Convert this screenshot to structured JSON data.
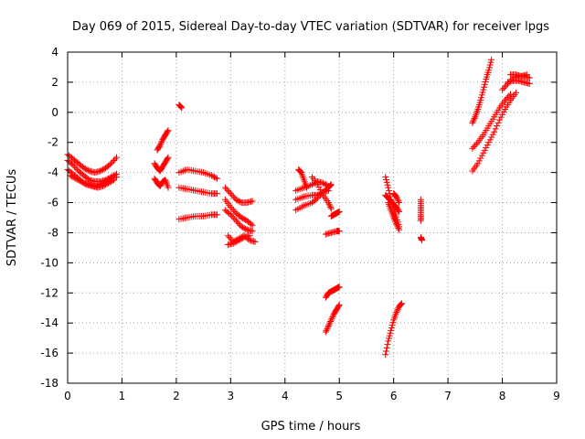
{
  "chart_data": {
    "type": "scatter",
    "title": "Day 069 of 2015, Sidereal Day-to-day VTEC variation (SDTVAR) for receiver lpgs",
    "xlabel": "GPS time / hours",
    "ylabel": "SDTVAR / TECUs",
    "xlim": [
      0,
      9
    ],
    "ylim": [
      -18,
      4
    ],
    "x_ticks": [
      0,
      1,
      2,
      3,
      4,
      5,
      6,
      7,
      8,
      9
    ],
    "y_ticks": [
      4,
      2,
      0,
      -2,
      -4,
      -6,
      -8,
      -10,
      -12,
      -14,
      -16,
      -18
    ],
    "grid": true,
    "marker": "+",
    "color": "#ff0000",
    "segments": [
      {
        "points": [
          [
            0.0,
            -3.2
          ],
          [
            0.1,
            -3.5
          ],
          [
            0.2,
            -3.9
          ],
          [
            0.3,
            -4.2
          ],
          [
            0.4,
            -4.5
          ],
          [
            0.5,
            -4.6
          ],
          [
            0.6,
            -4.6
          ],
          [
            0.7,
            -4.5
          ],
          [
            0.8,
            -4.3
          ],
          [
            0.9,
            -4.1
          ]
        ]
      },
      {
        "points": [
          [
            0.0,
            -3.8
          ],
          [
            0.1,
            -4.1
          ],
          [
            0.2,
            -4.4
          ],
          [
            0.3,
            -4.7
          ],
          [
            0.4,
            -4.8
          ],
          [
            0.5,
            -4.9
          ],
          [
            0.6,
            -4.8
          ],
          [
            0.7,
            -4.6
          ],
          [
            0.8,
            -4.4
          ],
          [
            0.9,
            -4.3
          ]
        ]
      },
      {
        "points": [
          [
            0.0,
            -2.8
          ],
          [
            0.1,
            -3.1
          ],
          [
            0.2,
            -3.4
          ],
          [
            0.3,
            -3.7
          ],
          [
            0.4,
            -3.9
          ],
          [
            0.5,
            -4.0
          ],
          [
            0.6,
            -3.9
          ],
          [
            0.7,
            -3.7
          ],
          [
            0.8,
            -3.4
          ],
          [
            0.9,
            -3.0
          ]
        ]
      },
      {
        "points": [
          [
            0.05,
            -4.2
          ],
          [
            0.15,
            -4.4
          ],
          [
            0.25,
            -4.6
          ],
          [
            0.35,
            -4.8
          ],
          [
            0.45,
            -4.9
          ],
          [
            0.55,
            -5.0
          ],
          [
            0.65,
            -4.9
          ],
          [
            0.75,
            -4.7
          ],
          [
            0.85,
            -4.5
          ]
        ]
      },
      {
        "points": [
          [
            1.6,
            -3.4
          ],
          [
            1.65,
            -3.7
          ],
          [
            1.7,
            -3.9
          ],
          [
            1.75,
            -3.6
          ],
          [
            1.8,
            -3.3
          ],
          [
            1.85,
            -3.0
          ]
        ]
      },
      {
        "points": [
          [
            1.6,
            -4.4
          ],
          [
            1.65,
            -4.7
          ],
          [
            1.7,
            -4.9
          ],
          [
            1.75,
            -4.6
          ],
          [
            1.8,
            -4.5
          ],
          [
            1.85,
            -5.0
          ]
        ]
      },
      {
        "points": [
          [
            1.65,
            -2.5
          ],
          [
            1.7,
            -2.2
          ],
          [
            1.75,
            -1.8
          ],
          [
            1.8,
            -1.5
          ],
          [
            1.85,
            -1.2
          ]
        ]
      },
      {
        "points": [
          [
            2.05,
            0.5
          ],
          [
            2.1,
            0.3
          ]
        ]
      },
      {
        "points": [
          [
            2.05,
            -4.0
          ],
          [
            2.2,
            -3.8
          ],
          [
            2.35,
            -3.9
          ],
          [
            2.5,
            -4.0
          ],
          [
            2.65,
            -4.2
          ],
          [
            2.75,
            -4.4
          ]
        ]
      },
      {
        "points": [
          [
            2.05,
            -5.0
          ],
          [
            2.2,
            -5.1
          ],
          [
            2.35,
            -5.2
          ],
          [
            2.5,
            -5.3
          ],
          [
            2.65,
            -5.4
          ],
          [
            2.75,
            -5.4
          ]
        ]
      },
      {
        "points": [
          [
            2.05,
            -7.1
          ],
          [
            2.2,
            -7.0
          ],
          [
            2.35,
            -6.9
          ],
          [
            2.5,
            -6.9
          ],
          [
            2.65,
            -6.8
          ],
          [
            2.75,
            -6.8
          ]
        ]
      },
      {
        "points": [
          [
            2.9,
            -5.0
          ],
          [
            3.0,
            -5.4
          ],
          [
            3.1,
            -5.8
          ],
          [
            3.2,
            -6.0
          ],
          [
            3.3,
            -6.0
          ],
          [
            3.4,
            -5.9
          ]
        ]
      },
      {
        "points": [
          [
            2.9,
            -5.8
          ],
          [
            3.0,
            -6.3
          ],
          [
            3.1,
            -6.7
          ],
          [
            3.2,
            -7.0
          ],
          [
            3.3,
            -7.2
          ],
          [
            3.4,
            -7.5
          ]
        ]
      },
      {
        "points": [
          [
            2.9,
            -6.5
          ],
          [
            3.0,
            -6.8
          ],
          [
            3.1,
            -7.2
          ],
          [
            3.2,
            -7.6
          ],
          [
            3.3,
            -7.8
          ],
          [
            3.4,
            -7.9
          ]
        ]
      },
      {
        "points": [
          [
            2.95,
            -8.2
          ],
          [
            3.05,
            -8.6
          ],
          [
            3.15,
            -8.4
          ],
          [
            3.25,
            -8.2
          ],
          [
            3.35,
            -8.5
          ],
          [
            3.45,
            -8.6
          ]
        ]
      },
      {
        "points": [
          [
            2.95,
            -8.8
          ],
          [
            3.05,
            -8.7
          ],
          [
            3.15,
            -8.5
          ],
          [
            3.25,
            -8.3
          ],
          [
            3.35,
            -8.2
          ]
        ]
      },
      {
        "points": [
          [
            4.25,
            -3.8
          ],
          [
            4.3,
            -4.0
          ],
          [
            4.35,
            -4.5
          ],
          [
            4.4,
            -5.0
          ]
        ]
      },
      {
        "points": [
          [
            4.2,
            -5.2
          ],
          [
            4.35,
            -5.0
          ],
          [
            4.5,
            -4.8
          ],
          [
            4.6,
            -4.6
          ],
          [
            4.7,
            -4.7
          ],
          [
            4.8,
            -4.9
          ]
        ]
      },
      {
        "points": [
          [
            4.2,
            -5.8
          ],
          [
            4.35,
            -5.6
          ],
          [
            4.5,
            -5.5
          ],
          [
            4.6,
            -5.5
          ],
          [
            4.7,
            -5.3
          ],
          [
            4.8,
            -5.2
          ]
        ]
      },
      {
        "points": [
          [
            4.2,
            -6.5
          ],
          [
            4.35,
            -6.2
          ],
          [
            4.5,
            -6.0
          ],
          [
            4.6,
            -5.7
          ],
          [
            4.7,
            -5.3
          ],
          [
            4.8,
            -5.0
          ],
          [
            4.85,
            -4.8
          ]
        ]
      },
      {
        "points": [
          [
            4.5,
            -4.3
          ],
          [
            4.6,
            -4.8
          ],
          [
            4.7,
            -5.5
          ],
          [
            4.8,
            -6.0
          ],
          [
            4.85,
            -6.4
          ]
        ]
      },
      {
        "points": [
          [
            4.85,
            -6.9
          ],
          [
            4.9,
            -6.8
          ],
          [
            4.95,
            -6.7
          ],
          [
            5.0,
            -6.6
          ]
        ]
      },
      {
        "points": [
          [
            4.75,
            -8.1
          ],
          [
            4.85,
            -8.0
          ],
          [
            4.95,
            -7.9
          ],
          [
            5.0,
            -7.9
          ]
        ]
      },
      {
        "points": [
          [
            4.75,
            -12.3
          ],
          [
            4.8,
            -12.0
          ],
          [
            4.85,
            -11.9
          ],
          [
            4.9,
            -11.8
          ],
          [
            4.95,
            -11.7
          ],
          [
            5.0,
            -11.6
          ]
        ]
      },
      {
        "points": [
          [
            4.75,
            -14.6
          ],
          [
            4.8,
            -14.2
          ],
          [
            4.85,
            -13.8
          ],
          [
            4.9,
            -13.4
          ],
          [
            4.95,
            -13.1
          ],
          [
            5.0,
            -12.8
          ]
        ]
      },
      {
        "points": [
          [
            5.85,
            -4.3
          ],
          [
            5.9,
            -5.0
          ],
          [
            5.95,
            -5.8
          ],
          [
            6.0,
            -6.5
          ],
          [
            6.05,
            -7.0
          ],
          [
            6.1,
            -7.6
          ]
        ]
      },
      {
        "points": [
          [
            5.85,
            -5.5
          ],
          [
            5.9,
            -5.7
          ],
          [
            5.95,
            -5.9
          ],
          [
            6.0,
            -6.1
          ],
          [
            6.05,
            -6.3
          ],
          [
            6.1,
            -6.6
          ]
        ]
      },
      {
        "points": [
          [
            5.9,
            -6.0
          ],
          [
            5.95,
            -6.5
          ],
          [
            6.0,
            -7.0
          ],
          [
            6.05,
            -7.4
          ],
          [
            6.1,
            -7.8
          ]
        ]
      },
      {
        "points": [
          [
            6.0,
            -5.4
          ],
          [
            6.05,
            -5.6
          ],
          [
            6.1,
            -6.0
          ]
        ]
      },
      {
        "points": [
          [
            5.85,
            -16.1
          ],
          [
            5.9,
            -15.2
          ],
          [
            5.95,
            -14.5
          ],
          [
            6.0,
            -13.8
          ],
          [
            6.05,
            -13.3
          ],
          [
            6.1,
            -12.9
          ],
          [
            6.15,
            -12.7
          ]
        ]
      },
      {
        "points": [
          [
            6.5,
            -5.8
          ],
          [
            6.5,
            -6.3
          ],
          [
            6.5,
            -6.8
          ],
          [
            6.5,
            -7.2
          ]
        ]
      },
      {
        "points": [
          [
            6.5,
            -8.3
          ],
          [
            6.52,
            -8.5
          ]
        ]
      },
      {
        "points": [
          [
            7.45,
            -0.7
          ],
          [
            7.5,
            -0.3
          ],
          [
            7.55,
            0.2
          ],
          [
            7.6,
            0.8
          ],
          [
            7.65,
            1.5
          ],
          [
            7.7,
            2.2
          ],
          [
            7.75,
            2.8
          ],
          [
            7.8,
            3.5
          ]
        ]
      },
      {
        "points": [
          [
            7.45,
            -3.9
          ],
          [
            7.55,
            -3.4
          ],
          [
            7.65,
            -2.7
          ],
          [
            7.75,
            -2.0
          ],
          [
            7.85,
            -1.3
          ],
          [
            7.95,
            -0.5
          ],
          [
            8.05,
            0.2
          ],
          [
            8.15,
            0.8
          ],
          [
            8.25,
            1.3
          ]
        ]
      },
      {
        "points": [
          [
            7.45,
            -2.4
          ],
          [
            7.55,
            -2.0
          ],
          [
            7.65,
            -1.5
          ],
          [
            7.75,
            -0.9
          ],
          [
            7.85,
            -0.3
          ],
          [
            7.95,
            0.3
          ],
          [
            8.05,
            0.8
          ],
          [
            8.15,
            1.2
          ]
        ]
      },
      {
        "points": [
          [
            8.0,
            1.5
          ],
          [
            8.1,
            1.9
          ],
          [
            8.2,
            2.3
          ],
          [
            8.3,
            2.4
          ],
          [
            8.4,
            2.4
          ],
          [
            8.5,
            2.3
          ]
        ]
      },
      {
        "points": [
          [
            8.1,
            2.0
          ],
          [
            8.2,
            2.1
          ],
          [
            8.3,
            2.1
          ],
          [
            8.4,
            2.0
          ],
          [
            8.5,
            1.9
          ]
        ]
      },
      {
        "points": [
          [
            8.15,
            2.5
          ],
          [
            8.25,
            2.5
          ],
          [
            8.35,
            2.4
          ],
          [
            8.45,
            2.5
          ]
        ]
      }
    ]
  }
}
